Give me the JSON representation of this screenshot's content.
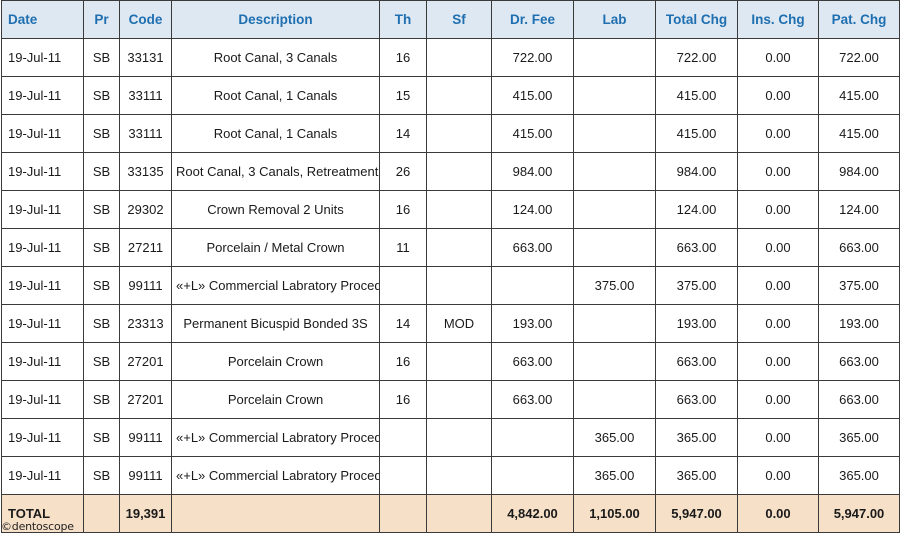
{
  "columns": [
    "Date",
    "Pr",
    "Code",
    "Description",
    "Th",
    "Sf",
    "Dr. Fee",
    "Lab",
    "Total Chg",
    "Ins. Chg",
    "Pat. Chg"
  ],
  "rows": [
    [
      "19-Jul-11",
      "SB",
      "33131",
      "Root Canal, 3 Canals",
      "16",
      "",
      "722.00",
      "",
      "722.00",
      "0.00",
      "722.00"
    ],
    [
      "19-Jul-11",
      "SB",
      "33111",
      "Root Canal, 1 Canals",
      "15",
      "",
      "415.00",
      "",
      "415.00",
      "0.00",
      "415.00"
    ],
    [
      "19-Jul-11",
      "SB",
      "33111",
      "Root Canal, 1 Canals",
      "14",
      "",
      "415.00",
      "",
      "415.00",
      "0.00",
      "415.00"
    ],
    [
      "19-Jul-11",
      "SB",
      "33135",
      "Root Canal, 3 Canals, Retreatment",
      "26",
      "",
      "984.00",
      "",
      "984.00",
      "0.00",
      "984.00"
    ],
    [
      "19-Jul-11",
      "SB",
      "29302",
      "Crown Removal 2 Units",
      "16",
      "",
      "124.00",
      "",
      "124.00",
      "0.00",
      "124.00"
    ],
    [
      "19-Jul-11",
      "SB",
      "27211",
      "Porcelain / Metal Crown",
      "11",
      "",
      "663.00",
      "",
      "663.00",
      "0.00",
      "663.00"
    ],
    [
      "19-Jul-11",
      "SB",
      "99111",
      "«+L» Commercial Labratory Proced",
      "",
      "",
      "",
      "375.00",
      "375.00",
      "0.00",
      "375.00"
    ],
    [
      "19-Jul-11",
      "SB",
      "23313",
      "Permanent Bicuspid Bonded 3S",
      "14",
      "MOD",
      "193.00",
      "",
      "193.00",
      "0.00",
      "193.00"
    ],
    [
      "19-Jul-11",
      "SB",
      "27201",
      "Porcelain Crown",
      "16",
      "",
      "663.00",
      "",
      "663.00",
      "0.00",
      "663.00"
    ],
    [
      "19-Jul-11",
      "SB",
      "27201",
      "Porcelain Crown",
      "16",
      "",
      "663.00",
      "",
      "663.00",
      "0.00",
      "663.00"
    ],
    [
      "19-Jul-11",
      "SB",
      "99111",
      "«+L» Commercial Labratory Proced",
      "",
      "",
      "",
      "365.00",
      "365.00",
      "0.00",
      "365.00"
    ],
    [
      "19-Jul-11",
      "SB",
      "99111",
      "«+L» Commercial Labratory Proced",
      "",
      "",
      "",
      "365.00",
      "365.00",
      "0.00",
      "365.00"
    ]
  ],
  "total": [
    "TOTAL",
    "",
    "19,391",
    "",
    "",
    "",
    "4,842.00",
    "1,105.00",
    "5,947.00",
    "0.00",
    "5,947.00"
  ],
  "watermark": "©dentoscope",
  "colors": {
    "header_text": "#1f6fb0",
    "header_bg": "#dde8f3",
    "total_bg": "#f7e0c8",
    "border": "#3a3a3a"
  }
}
